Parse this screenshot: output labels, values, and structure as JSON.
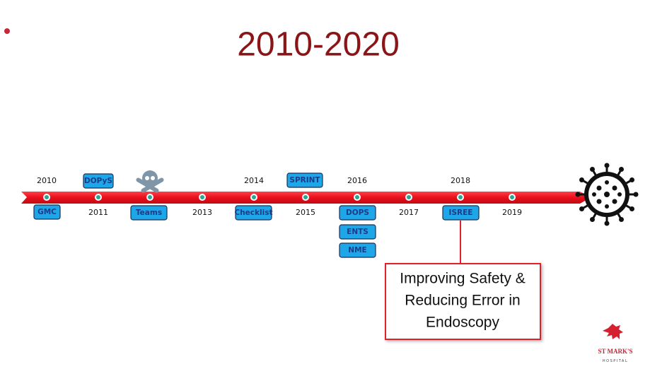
{
  "title": "2010-2020",
  "timeline": {
    "years": [
      "2010",
      "2011",
      "2013",
      "2014",
      "2015",
      "2016",
      "2017",
      "2018",
      "2019"
    ],
    "tags": [
      "GMC",
      "DOPyS",
      "Teams",
      "Checklist",
      "SPRINT",
      "DOPS",
      "ENTS",
      "NME",
      "ISREE"
    ]
  },
  "callout": {
    "lines": [
      "Improving Safety &",
      "Reducing Error in",
      "Endoscopy"
    ]
  },
  "logo": {
    "name": "ST MARK'S",
    "subtitle": "HOSPITAL"
  }
}
